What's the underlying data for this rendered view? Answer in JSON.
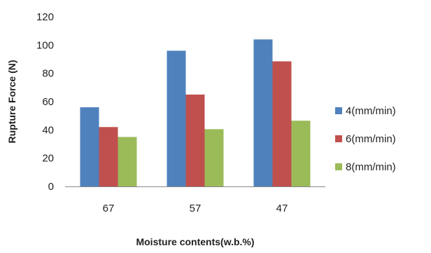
{
  "chart_data": {
    "type": "bar",
    "xlabel": "Moisture contents(w.b.%)",
    "ylabel": "Rupture Force (N)",
    "categories": [
      "67",
      "57",
      "47"
    ],
    "ylim": [
      0,
      120
    ],
    "yticks": [
      0,
      20,
      40,
      60,
      80,
      100,
      120
    ],
    "grid": false,
    "legend_position": "right",
    "series": [
      {
        "name": "4(mm/min)",
        "color": "#4F81BD",
        "values": [
          56,
          96,
          104
        ]
      },
      {
        "name": "6(mm/min)",
        "color": "#C0504D",
        "values": [
          42,
          65,
          88.5
        ]
      },
      {
        "name": "8(mm/min)",
        "color": "#9BBB59",
        "values": [
          35,
          40.5,
          46.5
        ]
      }
    ]
  }
}
